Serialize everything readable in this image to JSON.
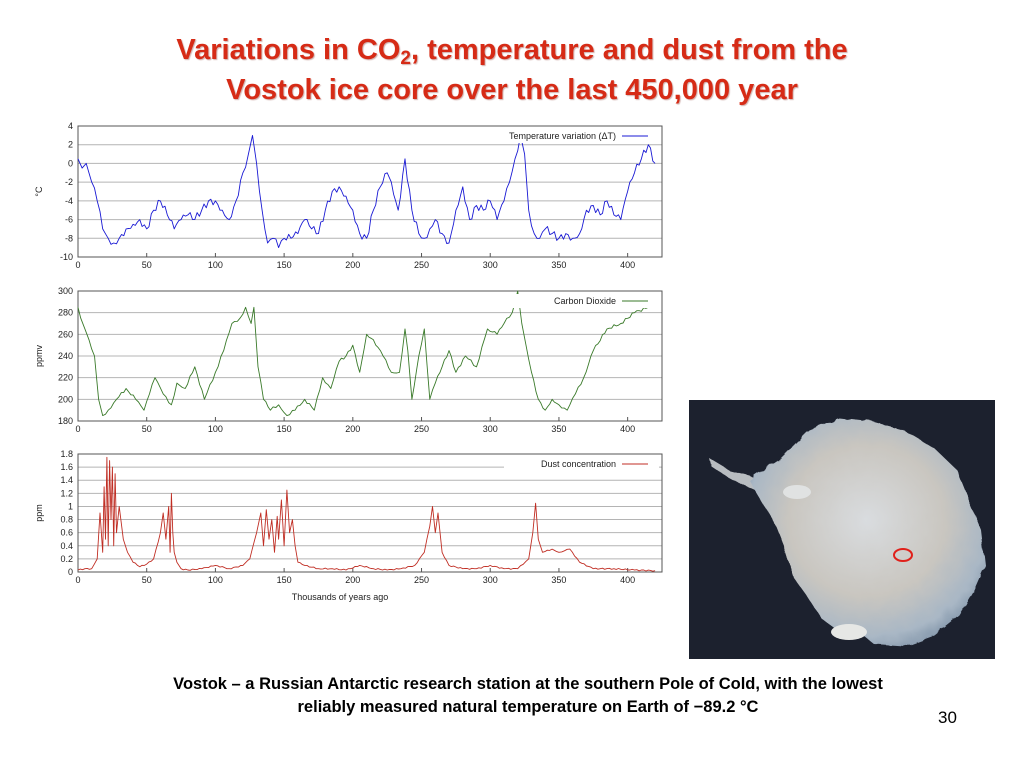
{
  "slide": {
    "title_before": "Variations in CO",
    "title_sub": "2",
    "title_after": ", temperature and dust from the",
    "title_line2": "Vostok  ice core over the last 450,000 year",
    "caption_line1": "Vostok – a Russian  Antarctic research station at the southern Pole of Cold, with the lowest",
    "caption_line2": "reliably measured natural temperature on Earth of −89.2 °C",
    "page_number": "30"
  },
  "chart_data": [
    {
      "type": "line",
      "ylabel": "°C",
      "xlabel": "",
      "legend": "Temperature variation (ΔT)",
      "legend_position": "top-right",
      "color": "#1a1ad4",
      "grid": true,
      "xlim": [
        0,
        425
      ],
      "ylim": [
        -10,
        4
      ],
      "x_ticks": [
        0,
        50,
        100,
        150,
        200,
        250,
        300,
        350,
        400
      ],
      "y_ticks": [
        -10,
        -8,
        -6,
        -4,
        -2,
        0,
        2,
        4
      ],
      "x": [
        0,
        3,
        6,
        10,
        14,
        18,
        22,
        26,
        30,
        35,
        40,
        45,
        50,
        55,
        60,
        65,
        70,
        75,
        80,
        85,
        90,
        95,
        100,
        105,
        110,
        115,
        120,
        124,
        127,
        130,
        134,
        138,
        142,
        146,
        150,
        155,
        160,
        165,
        170,
        175,
        180,
        185,
        190,
        195,
        200,
        205,
        210,
        215,
        220,
        225,
        228,
        233,
        238,
        243,
        248,
        252,
        256,
        260,
        265,
        270,
        275,
        280,
        285,
        290,
        295,
        300,
        305,
        310,
        314,
        318,
        322,
        325,
        328,
        332,
        336,
        340,
        345,
        350,
        355,
        360,
        365,
        370,
        375,
        380,
        385,
        390,
        395,
        400,
        405,
        410,
        415,
        420
      ],
      "values": [
        0.5,
        -0.5,
        0,
        -2,
        -4,
        -7,
        -8,
        -8.5,
        -8,
        -7,
        -6.5,
        -6,
        -7,
        -5,
        -4,
        -5.5,
        -7,
        -6,
        -5.5,
        -6,
        -5,
        -4,
        -4,
        -5,
        -6,
        -4,
        -1,
        1,
        3,
        0,
        -5,
        -8.5,
        -8,
        -9,
        -8,
        -8,
        -7.5,
        -6,
        -7,
        -7.5,
        -5,
        -3,
        -2.5,
        -3.5,
        -5,
        -7.5,
        -8,
        -5,
        -2.5,
        -1,
        -2,
        -5,
        0.5,
        -5,
        -7.5,
        -8,
        -7,
        -6,
        -7.5,
        -8.5,
        -5,
        -2.5,
        -6,
        -4.5,
        -5,
        -4,
        -6,
        -4,
        -2,
        0.5,
        3,
        1,
        -5,
        -7.5,
        -8,
        -7,
        -7.5,
        -8,
        -7.5,
        -8,
        -7.5,
        -5,
        -4.5,
        -5.5,
        -4,
        -5.5,
        -6,
        -3,
        -1,
        0.5,
        2,
        0
      ]
    },
    {
      "type": "line",
      "ylabel": "ppmv",
      "xlabel": "",
      "legend": "Carbon Dioxide",
      "legend_position": "top-right",
      "color": "#3a7a2a",
      "grid": true,
      "xlim": [
        0,
        425
      ],
      "ylim": [
        180,
        300
      ],
      "x_ticks": [
        0,
        50,
        100,
        150,
        200,
        250,
        300,
        350,
        400
      ],
      "y_ticks": [
        180,
        200,
        220,
        240,
        260,
        280,
        300
      ],
      "x": [
        0,
        2,
        5,
        8,
        12,
        15,
        18,
        22,
        28,
        35,
        42,
        48,
        52,
        56,
        62,
        68,
        72,
        78,
        85,
        92,
        100,
        106,
        112,
        118,
        122,
        126,
        128,
        131,
        135,
        140,
        146,
        152,
        158,
        165,
        172,
        178,
        184,
        190,
        195,
        200,
        205,
        210,
        215,
        222,
        228,
        234,
        238,
        240,
        243,
        248,
        252,
        256,
        260,
        265,
        270,
        275,
        282,
        290,
        298,
        305,
        310,
        316,
        320,
        323,
        326,
        330,
        335,
        340,
        345,
        350,
        356,
        362,
        368,
        375,
        385,
        395,
        405,
        415
      ],
      "values": [
        285,
        275,
        265,
        255,
        240,
        200,
        185,
        190,
        200,
        210,
        200,
        190,
        205,
        220,
        205,
        195,
        215,
        210,
        230,
        200,
        225,
        245,
        270,
        275,
        285,
        270,
        285,
        230,
        200,
        190,
        195,
        185,
        190,
        200,
        190,
        220,
        210,
        235,
        240,
        250,
        225,
        260,
        255,
        240,
        225,
        225,
        265,
        245,
        200,
        240,
        265,
        200,
        215,
        230,
        245,
        225,
        240,
        230,
        265,
        260,
        270,
        280,
        300,
        270,
        250,
        225,
        200,
        190,
        200,
        195,
        190,
        205,
        220,
        245,
        265,
        270,
        280,
        285
      ]
    },
    {
      "type": "line",
      "ylabel": "ppm",
      "xlabel": "Thousands of years ago",
      "legend": "Dust concentration",
      "legend_position": "top-right",
      "color": "#c02e24",
      "grid": true,
      "xlim": [
        0,
        425
      ],
      "ylim": [
        0,
        1.8
      ],
      "x_ticks": [
        0,
        50,
        100,
        150,
        200,
        250,
        300,
        350,
        400
      ],
      "y_ticks": [
        0,
        0.2,
        0.4,
        0.6,
        0.8,
        1,
        1.2,
        1.4,
        1.6,
        1.8
      ],
      "x": [
        0,
        5,
        10,
        14,
        16,
        18,
        19,
        20,
        21,
        22,
        23,
        24,
        25,
        26,
        27,
        28,
        30,
        33,
        36,
        40,
        45,
        50,
        55,
        60,
        62,
        64,
        66,
        67,
        68,
        69,
        70,
        72,
        75,
        80,
        90,
        100,
        110,
        120,
        125,
        130,
        133,
        135,
        137,
        139,
        141,
        143,
        145,
        146,
        148,
        150,
        152,
        154,
        156,
        158,
        160,
        165,
        175,
        185,
        195,
        205,
        215,
        225,
        235,
        245,
        252,
        256,
        258,
        260,
        262,
        265,
        270,
        280,
        290,
        300,
        310,
        320,
        328,
        331,
        333,
        335,
        338,
        345,
        350,
        358,
        365,
        375,
        390,
        405,
        420
      ],
      "values": [
        0.03,
        0.05,
        0.05,
        0.2,
        0.9,
        0.3,
        1.3,
        0.5,
        1.75,
        0.4,
        1.7,
        0.8,
        1.6,
        0.4,
        1.5,
        0.6,
        1.0,
        0.5,
        0.3,
        0.15,
        0.08,
        0.12,
        0.2,
        0.6,
        0.9,
        0.5,
        1.0,
        0.3,
        1.2,
        0.6,
        0.3,
        0.15,
        0.05,
        0.03,
        0.05,
        0.1,
        0.05,
        0.1,
        0.2,
        0.6,
        0.9,
        0.4,
        0.95,
        0.5,
        0.8,
        0.3,
        0.85,
        0.5,
        1.1,
        0.4,
        1.25,
        0.6,
        0.8,
        0.4,
        0.15,
        0.1,
        0.05,
        0.05,
        0.03,
        0.1,
        0.05,
        0.03,
        0.05,
        0.1,
        0.3,
        0.7,
        1.0,
        0.6,
        0.9,
        0.3,
        0.1,
        0.05,
        0.05,
        0.1,
        0.05,
        0.05,
        0.2,
        0.6,
        1.05,
        0.5,
        0.3,
        0.35,
        0.3,
        0.35,
        0.15,
        0.05,
        0.05,
        0.03,
        0.02
      ]
    }
  ],
  "map": {
    "subject": "Antarctica satellite map",
    "marker_color": "#e0201a",
    "background_color": "#1c212e"
  }
}
